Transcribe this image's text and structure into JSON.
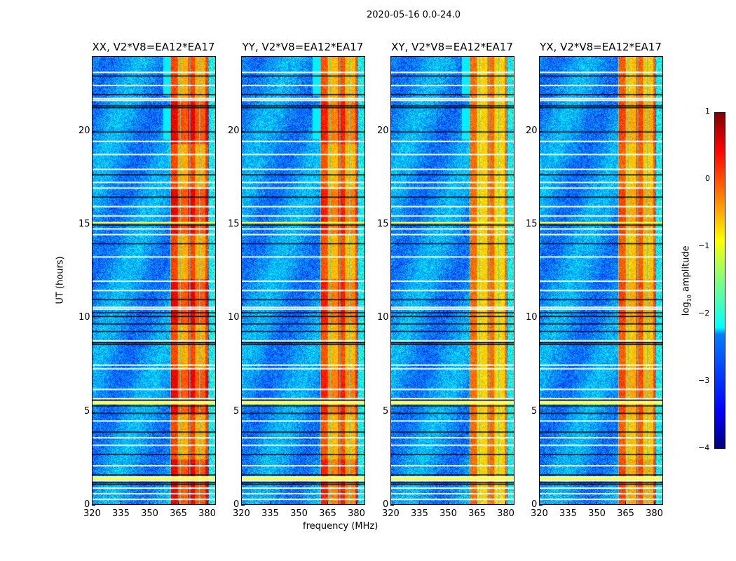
{
  "figure_title": "2020-05-16 0.0-24.0",
  "chart_data": {
    "type": "heatmap",
    "title": "2020-05-16 0.0-24.0",
    "xlabel": "frequency (MHz)",
    "ylabel": "UT (hours)",
    "xlim": [
      320,
      384.7
    ],
    "ylim": [
      0,
      24
    ],
    "xticks": [
      320,
      335,
      350,
      365,
      380
    ],
    "yticks": [
      0,
      5,
      10,
      15,
      20
    ],
    "colorbar": {
      "label": "log10 amplitude",
      "label_main": "log",
      "label_sub": "10",
      "label_rest": " amplitude",
      "range": [
        -4,
        1
      ],
      "ticks": [
        1,
        0,
        -1,
        -2,
        -3,
        -4
      ],
      "tick_labels": [
        "1",
        "0",
        "−1",
        "−2",
        "−3",
        "−4"
      ],
      "colormap": "jet"
    },
    "panels": [
      {
        "title": "XX, V2*V8=EA12*EA17",
        "rfi_band_mhz": [
          360.6,
          380.8
        ],
        "upper_band_start_mhz": 357,
        "peak_level": 0.3
      },
      {
        "title": "YY, V2*V8=EA12*EA17",
        "rfi_band_mhz": [
          361,
          380.8
        ],
        "upper_band_start_mhz": 357,
        "peak_level": 0.1
      },
      {
        "title": "XY, V2*V8=EA12*EA17",
        "rfi_band_mhz": [
          361,
          380.8
        ],
        "upper_band_start_mhz": 357,
        "peak_level": -0.3
      },
      {
        "title": "YX, V2*V8=EA12*EA17",
        "rfi_band_mhz": [
          361,
          380.8
        ],
        "upper_band_start_mhz": 361,
        "peak_level": -0.1
      }
    ],
    "flagged_white_ut": [
      0.3,
      0.6,
      0.9,
      1.3,
      1.5,
      2.1,
      3.2,
      3.6,
      4.5,
      5.55,
      5.7,
      6.2,
      7.3,
      7.5,
      8.8,
      10.5,
      10.6,
      11.5,
      12.0,
      13.3,
      14.5,
      14.8,
      15.5,
      16.0,
      17.0,
      17.3,
      18.0,
      18.8,
      19.5,
      21.7,
      21.8,
      22.5,
      23.2
    ],
    "flagged_black_ut": [
      1.1,
      1.2,
      1.6,
      2.7,
      3.9,
      4.9,
      5.3,
      5.45,
      5.6,
      8.6,
      8.7,
      9.3,
      9.7,
      10.1,
      10.3,
      11.0,
      14.0,
      15.0,
      15.1,
      16.5,
      17.7,
      20.0,
      21.3,
      21.4,
      22.0,
      23.0
    ],
    "bright_bands_ut": [
      [
        1.3,
        1.45
      ],
      [
        5.35,
        5.5
      ],
      [
        15.05,
        15.15
      ]
    ]
  }
}
